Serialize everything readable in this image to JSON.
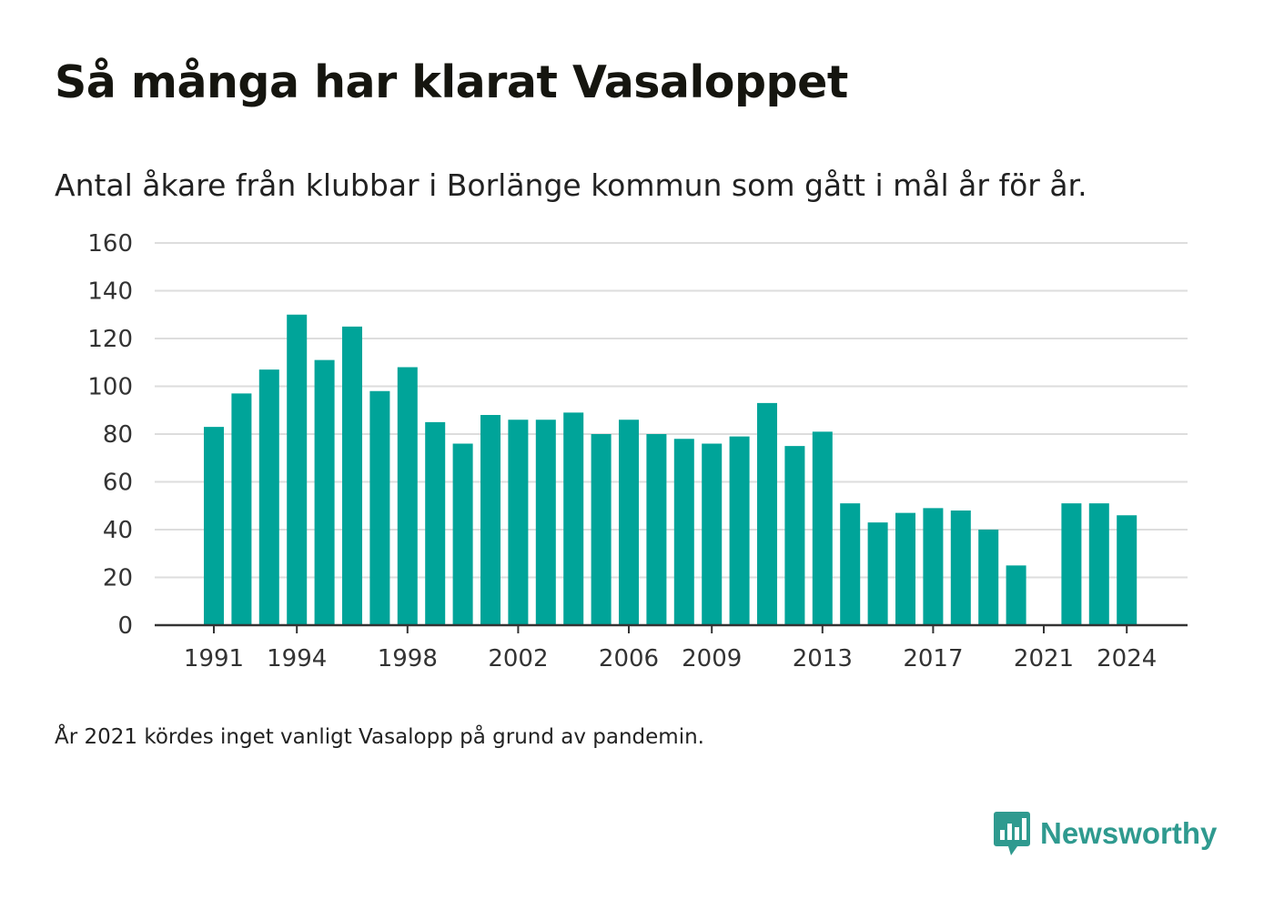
{
  "title": "Så många har klarat Vasaloppet",
  "subtitle": "Antal åkare från klubbar i Borlänge kommun som gått i mål år för år.",
  "note": "År 2021 kördes inget vanligt Vasalopp på grund av pandemin.",
  "brand": {
    "name": "Newsworthy",
    "color": "#2f9a8f",
    "logo_icon": "newsworthy-logo-icon"
  },
  "colors": {
    "bar": "#00a499",
    "grid": "#dddddd",
    "axis": "#333333"
  },
  "chart_data": {
    "type": "bar",
    "title": "Så många har klarat Vasaloppet",
    "subtitle": "Antal åkare från klubbar i Borlänge kommun som gått i mål år för år.",
    "xlabel": "",
    "ylabel": "",
    "ylim": [
      0,
      160
    ],
    "yticks": [
      0,
      20,
      40,
      60,
      80,
      100,
      120,
      140,
      160
    ],
    "xticks": [
      1991,
      1994,
      1998,
      2002,
      2006,
      2009,
      2013,
      2017,
      2021,
      2024
    ],
    "grid": true,
    "legend": "none",
    "categories": [
      1991,
      1992,
      1993,
      1994,
      1995,
      1996,
      1997,
      1998,
      1999,
      2000,
      2001,
      2002,
      2003,
      2004,
      2005,
      2006,
      2007,
      2008,
      2009,
      2010,
      2011,
      2012,
      2013,
      2014,
      2015,
      2016,
      2017,
      2018,
      2019,
      2020,
      2021,
      2022,
      2023,
      2024
    ],
    "values": [
      83,
      97,
      107,
      130,
      111,
      125,
      98,
      108,
      85,
      76,
      88,
      86,
      86,
      89,
      80,
      86,
      80,
      78,
      76,
      79,
      93,
      75,
      81,
      51,
      43,
      47,
      49,
      48,
      40,
      25,
      0,
      51,
      51,
      46
    ]
  }
}
